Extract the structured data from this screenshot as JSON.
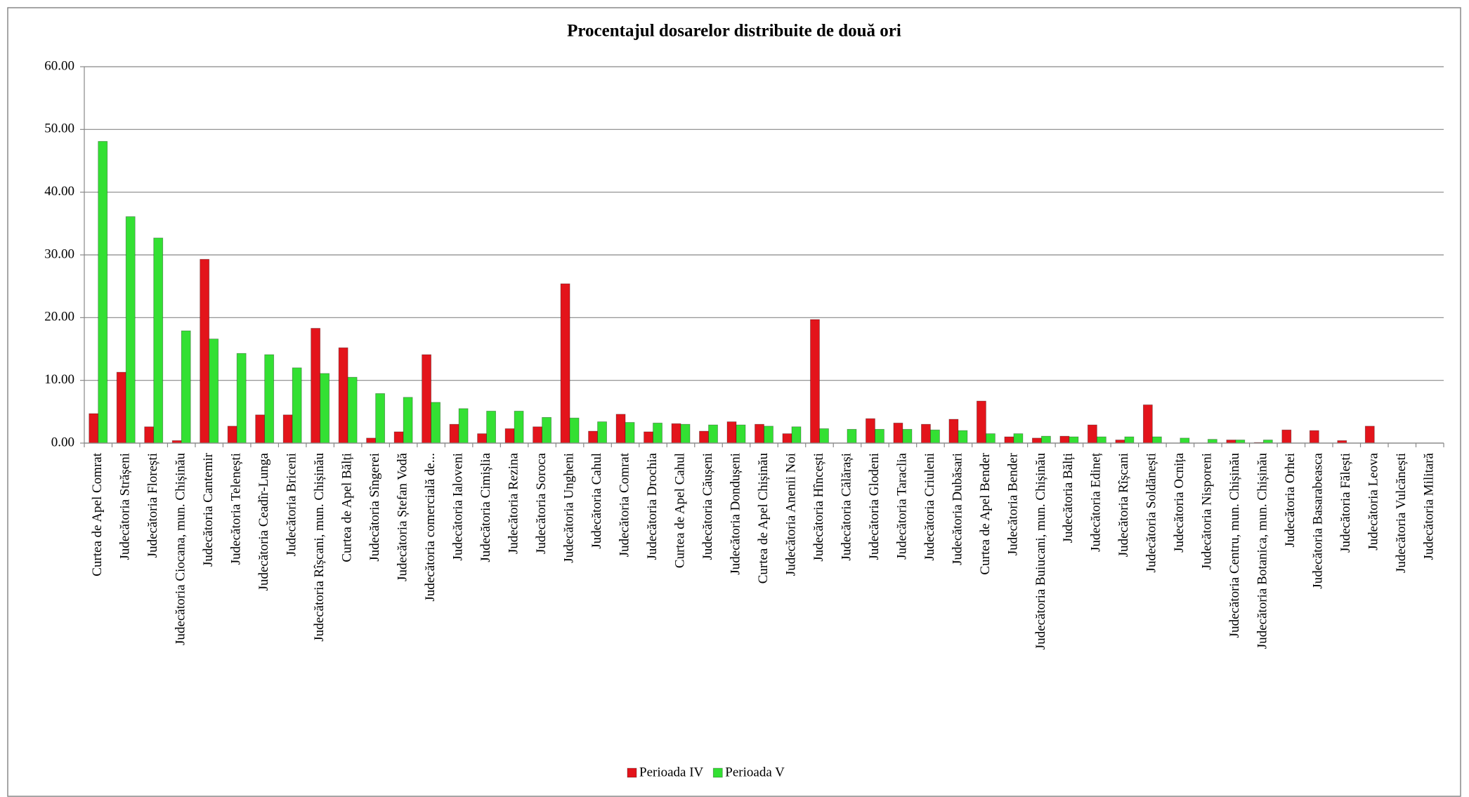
{
  "chart_data": {
    "type": "bar",
    "title": "Procentajul dosarelor distribuite de două ori",
    "categories": [
      "Curtea de Apel Comrat",
      "Judecătoria Strășeni",
      "Judecătoria Florești",
      "Judecătoria Ciocana, mun. Chișinău",
      "Judecătoria Cantemir",
      "Judecătoria Telenești",
      "Judecătoria Ceadîr-Lunga",
      "Judecătoria Briceni",
      "Judecătoria Rîșcani, mun. Chișinău",
      "Curtea de Apel Bălți",
      "Judecătoria Sîngerei",
      "Judecătoria Ștefan Vodă",
      "Judecătoria comercială de...",
      "Judecătoria Ialoveni",
      "Judecătoria Cimișlia",
      "Judecătoria Rezina",
      "Judecătoria Soroca",
      "Judecătoria Ungheni",
      "Judecătoria Cahul",
      "Judecătoria Comrat",
      "Judecătoria Drochia",
      "Curtea de Apel Cahul",
      "Judecătoria Căușeni",
      "Judecătoria Dondușeni",
      "Curtea de Apel Chișinău",
      "Judecătoria Anenii Noi",
      "Judecătoria Hîncești",
      "Judecătoria Călărași",
      "Judecătoria Glodeni",
      "Judecătoria Taraclia",
      "Judecătoria Criuleni",
      "Judecătoria Dubăsari",
      "Curtea de Apel Bender",
      "Judecătoria Bender",
      "Judecătoria Buiucani, mun. Chișinău",
      "Judecătoria Bălți",
      "Judecătoria Edineț",
      "Judecătoria Rîșcani",
      "Judecătoria Soldănești",
      "Judecătoria Ocnița",
      "Judecătoria Nisporeni",
      "Judecătoria Centru, mun. Chișinău",
      "Judecătoria Botanica, mun. Chișinău",
      "Judecătoria Orhei",
      "Judecătoria Basarabeasca",
      "Judecătoria Fălești",
      "Judecătoria Leova",
      "Judecătoria Vulcănești",
      "Judecătoria Militară"
    ],
    "series": [
      {
        "name": "Perioada IV",
        "color": "#e3141b",
        "values": [
          4.7,
          11.3,
          2.6,
          0.4,
          29.3,
          2.7,
          4.5,
          4.5,
          18.3,
          15.2,
          0.8,
          1.8,
          14.1,
          3.0,
          1.5,
          2.3,
          2.6,
          25.4,
          1.9,
          4.6,
          1.8,
          3.1,
          1.9,
          3.4,
          3.0,
          1.5,
          19.7,
          0,
          3.9,
          3.2,
          3.0,
          3.8,
          6.7,
          1.0,
          0.8,
          1.1,
          2.9,
          0.5,
          6.1,
          0,
          0,
          0.5,
          0.1,
          2.1,
          2.0,
          0.4,
          2.7,
          0,
          0
        ]
      },
      {
        "name": "Perioada V",
        "color": "#33e033",
        "values": [
          48.1,
          36.1,
          32.7,
          17.9,
          16.6,
          14.3,
          14.1,
          12.0,
          11.1,
          10.5,
          7.9,
          7.3,
          6.5,
          5.5,
          5.1,
          5.1,
          4.1,
          4.0,
          3.4,
          3.3,
          3.2,
          3.0,
          2.9,
          2.9,
          2.7,
          2.6,
          2.3,
          2.2,
          2.2,
          2.2,
          2.1,
          2.0,
          1.5,
          1.5,
          1.1,
          1.0,
          1.0,
          1.0,
          1.0,
          0.8,
          0.6,
          0.5,
          0.5,
          0,
          0,
          0,
          0,
          0,
          0
        ]
      }
    ],
    "ylim": [
      0,
      60
    ],
    "yticks": [
      {
        "value": 0,
        "label": "0.00"
      },
      {
        "value": 10,
        "label": "10.00"
      },
      {
        "value": 20,
        "label": "20.00"
      },
      {
        "value": 30,
        "label": "30.00"
      },
      {
        "value": 40,
        "label": "40.00"
      },
      {
        "value": 50,
        "label": "50.00"
      },
      {
        "value": 60,
        "label": "60.00"
      }
    ],
    "grid": true,
    "legend": "bottom"
  }
}
